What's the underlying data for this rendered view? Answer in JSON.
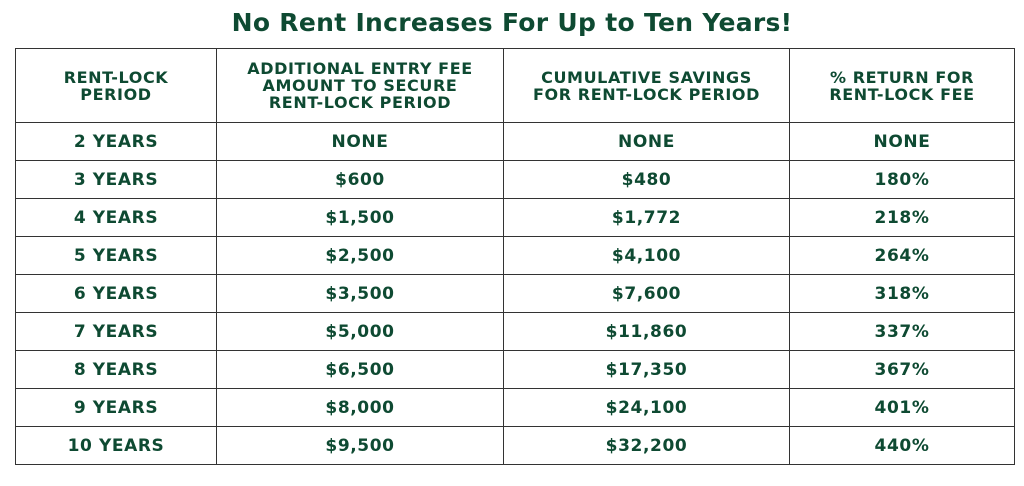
{
  "title": "No Rent Increases For Up to Ten Years!",
  "table": {
    "headers": [
      "RENT-LOCK\nPERIOD",
      "ADDITIONAL ENTRY FEE\nAMOUNT TO SECURE\nRENT-LOCK PERIOD",
      "CUMULATIVE SAVINGS\nFOR RENT-LOCK PERIOD",
      "% RETURN FOR\nRENT-LOCK FEE"
    ],
    "rows": [
      [
        "2 YEARS",
        "NONE",
        "NONE",
        "NONE"
      ],
      [
        "3 YEARS",
        "$600",
        "$480",
        "180%"
      ],
      [
        "4 YEARS",
        "$1,500",
        "$1,772",
        "218%"
      ],
      [
        "5 YEARS",
        "$2,500",
        "$4,100",
        "264%"
      ],
      [
        "6 YEARS",
        "$3,500",
        "$7,600",
        "318%"
      ],
      [
        "7 YEARS",
        "$5,000",
        "$11,860",
        "337%"
      ],
      [
        "8 YEARS",
        "$6,500",
        "$17,350",
        "367%"
      ],
      [
        "9 YEARS",
        "$8,000",
        "$24,100",
        "401%"
      ],
      [
        "10 YEARS",
        "$9,500",
        "$32,200",
        "440%"
      ]
    ]
  },
  "colors": {
    "text": "#0e4a32",
    "border": "#333333",
    "background": "#ffffff"
  }
}
